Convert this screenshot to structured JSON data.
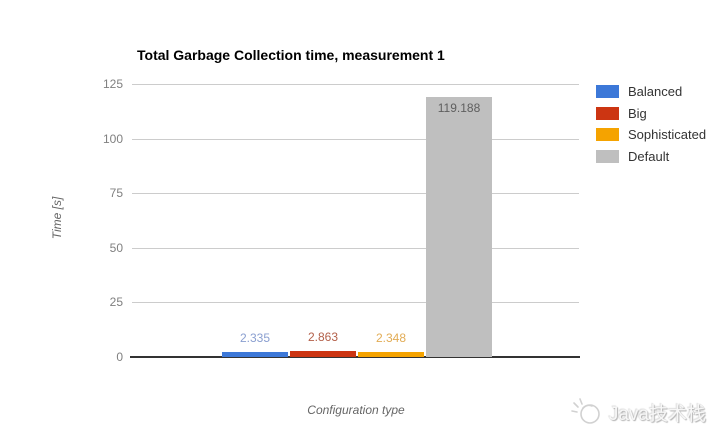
{
  "page": {
    "background": "#FFFFFF"
  },
  "chart_data": {
    "type": "bar",
    "title": "Total Garbage Collection time, measurement 1",
    "xlabel": "Configuration type",
    "ylabel": "Time [s]",
    "categories": [
      ""
    ],
    "series": [
      {
        "name": "Balanced",
        "value": 2.335,
        "value_label": "2.335",
        "color": "#3C78D8",
        "label_color": "#8A9FD0"
      },
      {
        "name": "Big",
        "value": 2.863,
        "value_label": "2.863",
        "color": "#CC3512",
        "label_color": "#B3604A"
      },
      {
        "name": "Sophisticated",
        "value": 2.348,
        "value_label": "2.348",
        "color": "#F5A300",
        "label_color": "#E2AC55"
      },
      {
        "name": "Default",
        "value": 119.188,
        "value_label": "119.188",
        "color": "#BFBFBF",
        "label_color": "#5E5E5E"
      }
    ],
    "ylim": [
      0,
      125
    ],
    "yticks": [
      0,
      25,
      50,
      75,
      100,
      125
    ],
    "grid": true,
    "legend_position": "right",
    "colors": {
      "gridline": "#CCCCCC",
      "axis_line": "#333333",
      "tick_label": "#808080",
      "axis_title": "#666666",
      "legend_text": "#333333",
      "title": "#000000"
    }
  },
  "watermark": {
    "text": "Java技术栈",
    "icon": "paw-sparkle-logo"
  }
}
